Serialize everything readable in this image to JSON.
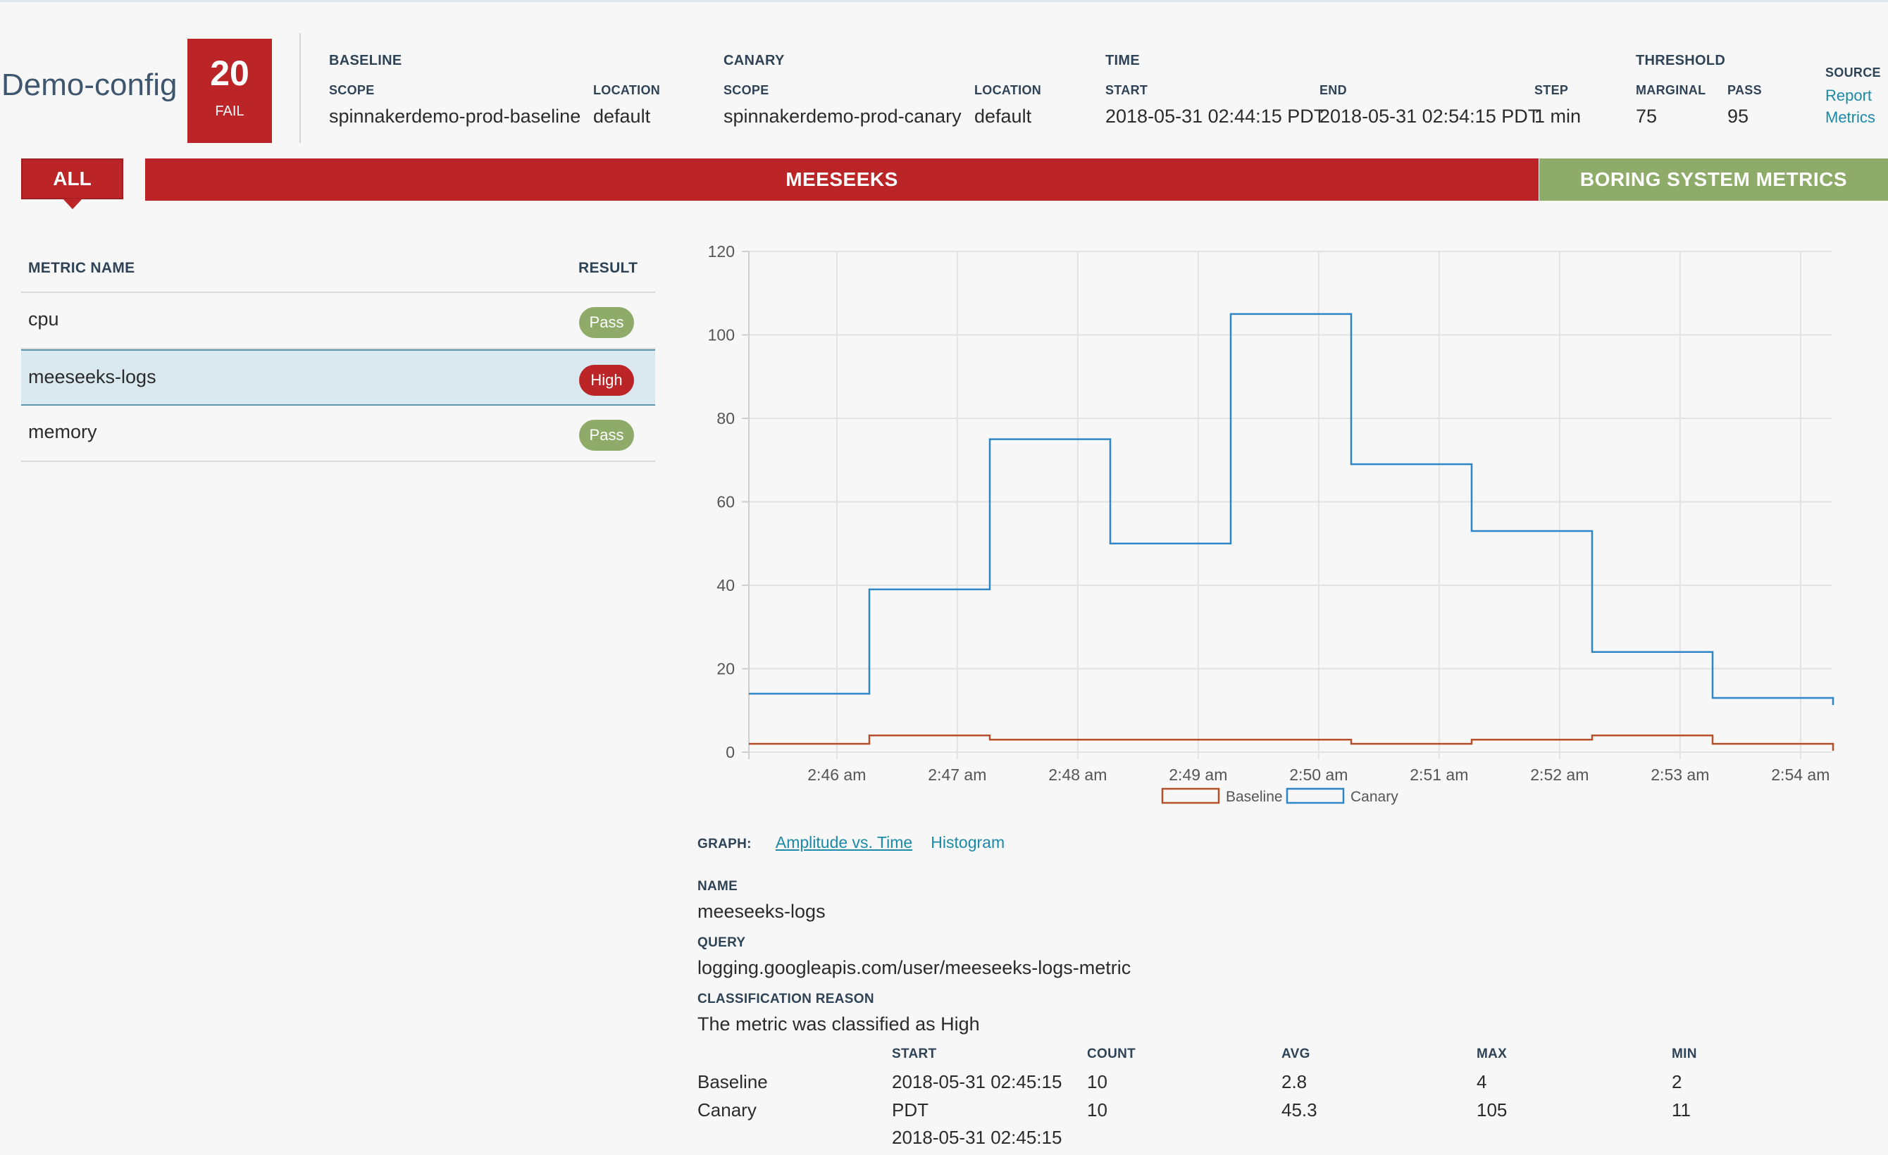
{
  "header": {
    "config_name": "Demo-config",
    "score": "20",
    "score_label": "FAIL",
    "baseline": {
      "title": "BASELINE",
      "scope_label": "SCOPE",
      "scope": "spinnakerdemo-prod-baseline",
      "location_label": "LOCATION",
      "location": "default"
    },
    "canary": {
      "title": "CANARY",
      "scope_label": "SCOPE",
      "scope": "spinnakerdemo-prod-canary",
      "location_label": "LOCATION",
      "location": "default"
    },
    "time": {
      "title": "TIME",
      "start_label": "START",
      "start": "2018-05-31 02:44:15 PDT",
      "end_label": "END",
      "end": "2018-05-31 02:54:15 PDT",
      "step_label": "STEP",
      "step": "1 min"
    },
    "threshold": {
      "title": "THRESHOLD",
      "marginal_label": "MARGINAL",
      "marginal": "75",
      "pass_label": "PASS",
      "pass": "95"
    },
    "source": {
      "title": "SOURCE",
      "link_line1": "Report",
      "link_line2": "Metrics"
    }
  },
  "groups": {
    "all_label": "ALL",
    "items": [
      {
        "label": "MEESEEKS",
        "color": "#bb2528"
      },
      {
        "label": "BORING SYSTEM METRICS",
        "color": "#8fab6a"
      }
    ]
  },
  "metrics_table": {
    "col_name": "METRIC NAME",
    "col_result": "RESULT",
    "rows": [
      {
        "name": "cpu",
        "result": "Pass"
      },
      {
        "name": "meeseeks-logs",
        "result": "High"
      },
      {
        "name": "memory",
        "result": "Pass"
      }
    ]
  },
  "chart_data": {
    "type": "line",
    "step": true,
    "x_tick_labels": [
      "2:46 am",
      "2:47 am",
      "2:48 am",
      "2:49 am",
      "2:50 am",
      "2:51 am",
      "2:52 am",
      "2:53 am",
      "2:54 am"
    ],
    "ylim": [
      0,
      120
    ],
    "y_ticks": [
      0,
      20,
      40,
      60,
      80,
      100,
      120
    ],
    "grid": true,
    "legend_position": "bottom",
    "series": [
      {
        "name": "Baseline",
        "color": "#b5502a",
        "values": [
          2,
          4,
          3,
          3,
          3,
          2,
          3,
          4,
          2
        ]
      },
      {
        "name": "Canary",
        "color": "#2f86c7",
        "values": [
          14,
          39,
          75,
          50,
          105,
          69,
          53,
          24,
          13
        ]
      }
    ]
  },
  "details": {
    "graph_label": "GRAPH:",
    "graph_options": [
      "Amplitude vs. Time",
      "Histogram"
    ],
    "name_label": "NAME",
    "name": "meeseeks-logs",
    "query_label": "QUERY",
    "query": "logging.googleapis.com/user/meeseeks-logs-metric",
    "reason_label": "CLASSIFICATION REASON",
    "reason": "The metric was classified as High",
    "stats": {
      "headers": [
        "START",
        "COUNT",
        "AVG",
        "MAX",
        "MIN"
      ],
      "rows": [
        {
          "name": "Baseline",
          "start": "2018-05-31 02:45:15",
          "count": "10",
          "avg": "2.8",
          "max": "4",
          "min": "2"
        },
        {
          "name": "Canary",
          "start": "2018-05-31 02:45:15",
          "count": "10",
          "avg": "45.3",
          "max": "105",
          "min": "11"
        }
      ],
      "start_suffix": "PDT"
    }
  }
}
